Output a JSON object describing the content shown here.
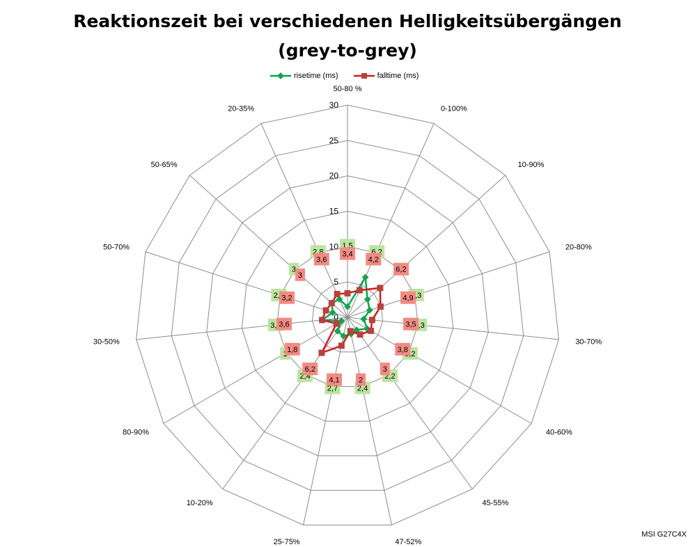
{
  "title_line1": "Reaktionszeit bei verschiedenen Helligkeitsübergängen",
  "title_line2": "(grey-to-grey)",
  "watermark": "MSI G27C4X",
  "colors": {
    "rise": "#00a651",
    "fall": "#d0191f",
    "rise_marker": "#1aa14f",
    "fall_marker": "#b5433d",
    "rise_label_bg": "#bde3a0",
    "fall_label_bg": "#f28b84",
    "grid": "#8c8c8c"
  },
  "chart_data": {
    "type": "radar",
    "title": "Reaktionszeit bei verschiedenen Helligkeitsübergängen (grey-to-grey)",
    "categories": [
      "50-80 %",
      "0-100%",
      "10-90%",
      "20-80%",
      "30-70%",
      "40-60%",
      "45-55%",
      "47-52%",
      "25-75%",
      "10-20%",
      "80-90%",
      "30-50%",
      "50-70%",
      "50-65%",
      "20-35%"
    ],
    "series": [
      {
        "name": "risetime (ms)",
        "values": [
          1.5,
          6.2,
          3.8,
          3.3,
          2.3,
          3.2,
          2.2,
          2.4,
          2.7,
          2.4,
          1.0,
          3.6,
          2.2,
          3.0,
          2.8
        ]
      },
      {
        "name": "falltime (ms)",
        "values": [
          3.4,
          4.2,
          6.2,
          4.9,
          3.5,
          3.8,
          3.0,
          2.0,
          4.1,
          6.2,
          1.8,
          3.6,
          3.2,
          3.0,
          3.6
        ]
      }
    ],
    "value_labels": [
      [
        "1,5",
        "6,2",
        "3,8",
        "3,3",
        "2,3",
        "3,2",
        "2,2",
        "2,4",
        "2,7",
        "2,4",
        "1",
        "3,6",
        "2,2",
        "3",
        "2,8"
      ],
      [
        "3,4",
        "4,2",
        "6,2",
        "4,9",
        "3,5",
        "3,8",
        "3",
        "2",
        "4,1",
        "6,2",
        "1,8",
        "3,6",
        "3,2",
        "3",
        "3,6"
      ]
    ],
    "r_axis": {
      "min": 0,
      "max": 30,
      "ticks": [
        "0",
        "5",
        "10",
        "15",
        "20",
        "25",
        "30"
      ]
    },
    "legend_position": "top",
    "grid": true
  }
}
